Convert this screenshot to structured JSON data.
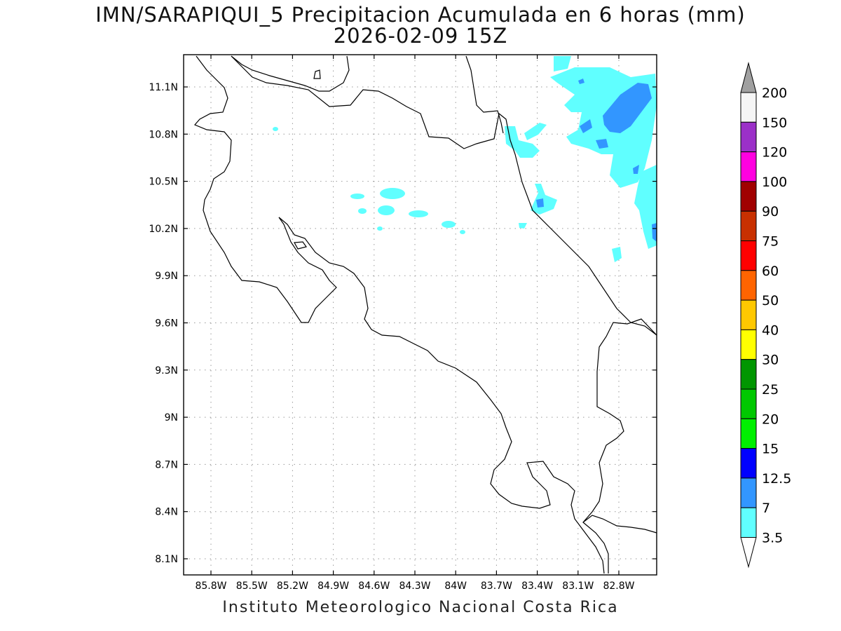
{
  "title_line1": "IMN/SARAPIQUI_5 Precipitacion Acumulada en 6 horas (mm)",
  "title_line2": "2026-02-09 15Z",
  "footer": "Instituto Meteorologico Nacional Costa Rica",
  "lat_labels": [
    "11.1N",
    "10.8N",
    "10.5N",
    "10.2N",
    "9.9N",
    "9.6N",
    "9.3N",
    "9N",
    "8.7N",
    "8.4N",
    "8.1N"
  ],
  "lon_labels": [
    "85.8W",
    "85.5W",
    "85.2W",
    "84.9W",
    "84.6W",
    "84.3W",
    "84W",
    "83.7W",
    "83.4W",
    "83.1W",
    "82.8W"
  ],
  "colorbar": {
    "labels": [
      "200",
      "150",
      "120",
      "100",
      "90",
      "75",
      "60",
      "50",
      "40",
      "30",
      "25",
      "20",
      "15",
      "12.5",
      "7",
      "3.5"
    ],
    "colors": [
      "#f5f5f5",
      "#9b30c8",
      "#ff00e0",
      "#a00000",
      "#c83000",
      "#ff0000",
      "#ff6400",
      "#ffc800",
      "#ffff00",
      "#009600",
      "#00c800",
      "#00f000",
      "#0000ff",
      "#3296ff",
      "#60ffff"
    ],
    "top_arrow_color": "#a0a0a0",
    "bottom_arrow_color": "#ffffff"
  }
}
